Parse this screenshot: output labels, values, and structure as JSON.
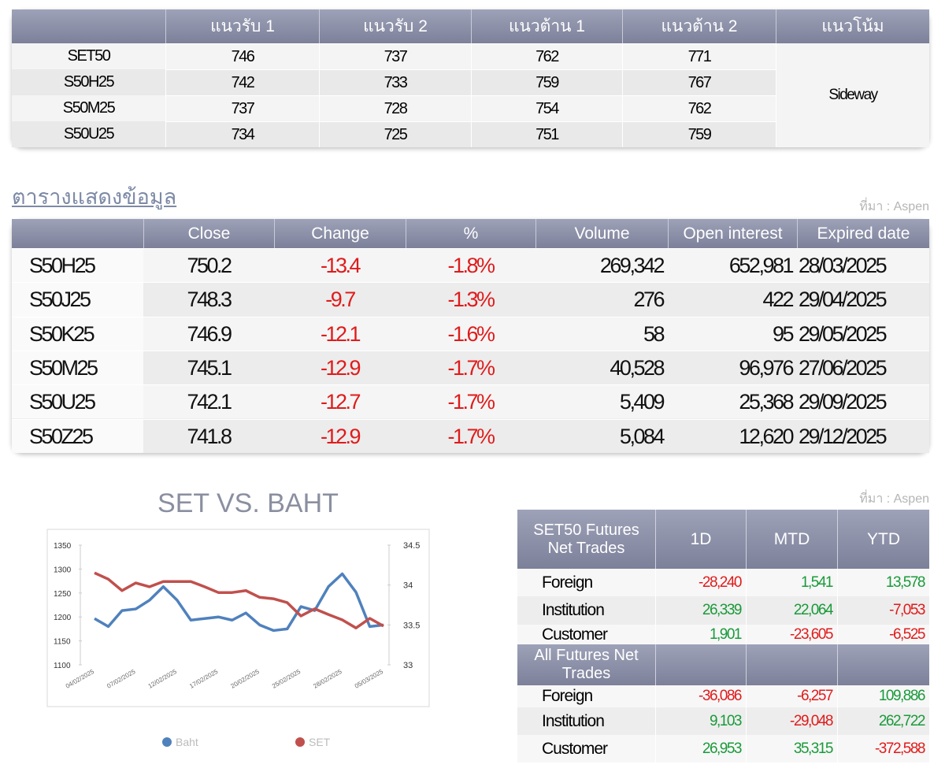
{
  "support_table": {
    "header": [
      "แนวรับ 1",
      "แนวรับ 2",
      "แนวต้าน 1",
      "แนวต้าน 2",
      "แนวโน้ม"
    ],
    "rows": [
      {
        "label": "SET50",
        "values": [
          "746",
          "737",
          "762",
          "771"
        ]
      },
      {
        "label": "S50H25",
        "values": [
          "742",
          "733",
          "759",
          "767"
        ]
      },
      {
        "label": "S50M25",
        "values": [
          "737",
          "728",
          "754",
          "762"
        ]
      },
      {
        "label": "S50U25",
        "values": [
          "734",
          "725",
          "751",
          "759"
        ]
      }
    ],
    "trend": "Sideway"
  },
  "futures_table": {
    "title": "ตารางแสดงข้อมูล",
    "source": "ที่มา : Aspen",
    "header": [
      "Close",
      "Change",
      "%",
      "Volume",
      "Open interest",
      "Expired date"
    ],
    "rows": [
      [
        "S50H25",
        "750.2",
        "-13.4",
        "-1.8%",
        "269,342",
        "652,981",
        "28/03/2025"
      ],
      [
        "S50J25",
        "748.3",
        "-9.7",
        "-1.3%",
        "276",
        "422",
        "29/04/2025"
      ],
      [
        "S50K25",
        "746.9",
        "-12.1",
        "-1.6%",
        "58",
        "95",
        "29/05/2025"
      ],
      [
        "S50M25",
        "745.1",
        "-12.9",
        "-1.7%",
        "40,528",
        "96,976",
        "27/06/2025"
      ],
      [
        "S50U25",
        "742.1",
        "-12.7",
        "-1.7%",
        "5,409",
        "25,368",
        "29/09/2025"
      ],
      [
        "S50Z25",
        "741.8",
        "-12.9",
        "-1.7%",
        "5,084",
        "12,620",
        "29/12/2025"
      ]
    ]
  },
  "chart_data": {
    "type": "line",
    "title": "SET VS. BAHT",
    "categories": [
      "04/02/2025",
      null,
      null,
      "07/02/2025",
      null,
      null,
      "12/02/2025",
      null,
      null,
      "17/02/2025",
      null,
      null,
      "20/02/2025",
      null,
      null,
      "25/02/2025",
      null,
      null,
      "28/02/2025",
      null,
      null,
      "05/03/2025"
    ],
    "series": [
      {
        "name": "Baht",
        "color": "#4f81bd",
        "axis": "y2",
        "values": [
          33.58,
          33.48,
          33.68,
          33.7,
          33.81,
          33.98,
          33.81,
          33.56,
          33.58,
          33.6,
          33.56,
          33.65,
          33.5,
          33.43,
          33.45,
          33.73,
          33.68,
          33.98,
          34.14,
          33.91,
          33.48,
          33.5
        ]
      },
      {
        "name": "SET",
        "color": "#c0504d",
        "values": [
          1292,
          1279,
          1255,
          1271,
          1263,
          1274,
          1274,
          1274,
          1263,
          1251,
          1251,
          1255,
          1241,
          1238,
          1230,
          1202,
          1217,
          1205,
          1194,
          1177,
          1197,
          1181
        ]
      }
    ],
    "ylim": [
      1100,
      1350
    ],
    "yticks": [
      1100,
      1150,
      1200,
      1250,
      1300,
      1350
    ],
    "y2lim": [
      33,
      34.5
    ],
    "y2ticks": [
      33,
      33.5,
      34,
      34.5
    ],
    "legend": "bottom"
  },
  "net_trades": {
    "source": "ที่มา : Aspen",
    "columns": [
      "1D",
      "MTD",
      "YTD"
    ],
    "sections": [
      {
        "title": "SET50 Futures Net Trades",
        "rows": [
          {
            "label": "Foreign",
            "values": [
              "-28,240",
              "1,541",
              "13,578"
            ]
          },
          {
            "label": "Institution",
            "values": [
              "26,339",
              "22,064",
              "-7,053"
            ]
          },
          {
            "label": "Customer",
            "values": [
              "1,901",
              "-23,605",
              "-6,525"
            ]
          }
        ]
      },
      {
        "title": "All Futures Net Trades",
        "rows": [
          {
            "label": "Foreign",
            "values": [
              "-36,086",
              "-6,257",
              "109,886"
            ]
          },
          {
            "label": "Institution",
            "values": [
              "9,103",
              "-29,048",
              "262,722"
            ]
          },
          {
            "label": "Customer",
            "values": [
              "26,953",
              "35,315",
              "-372,588"
            ]
          }
        ]
      }
    ]
  }
}
